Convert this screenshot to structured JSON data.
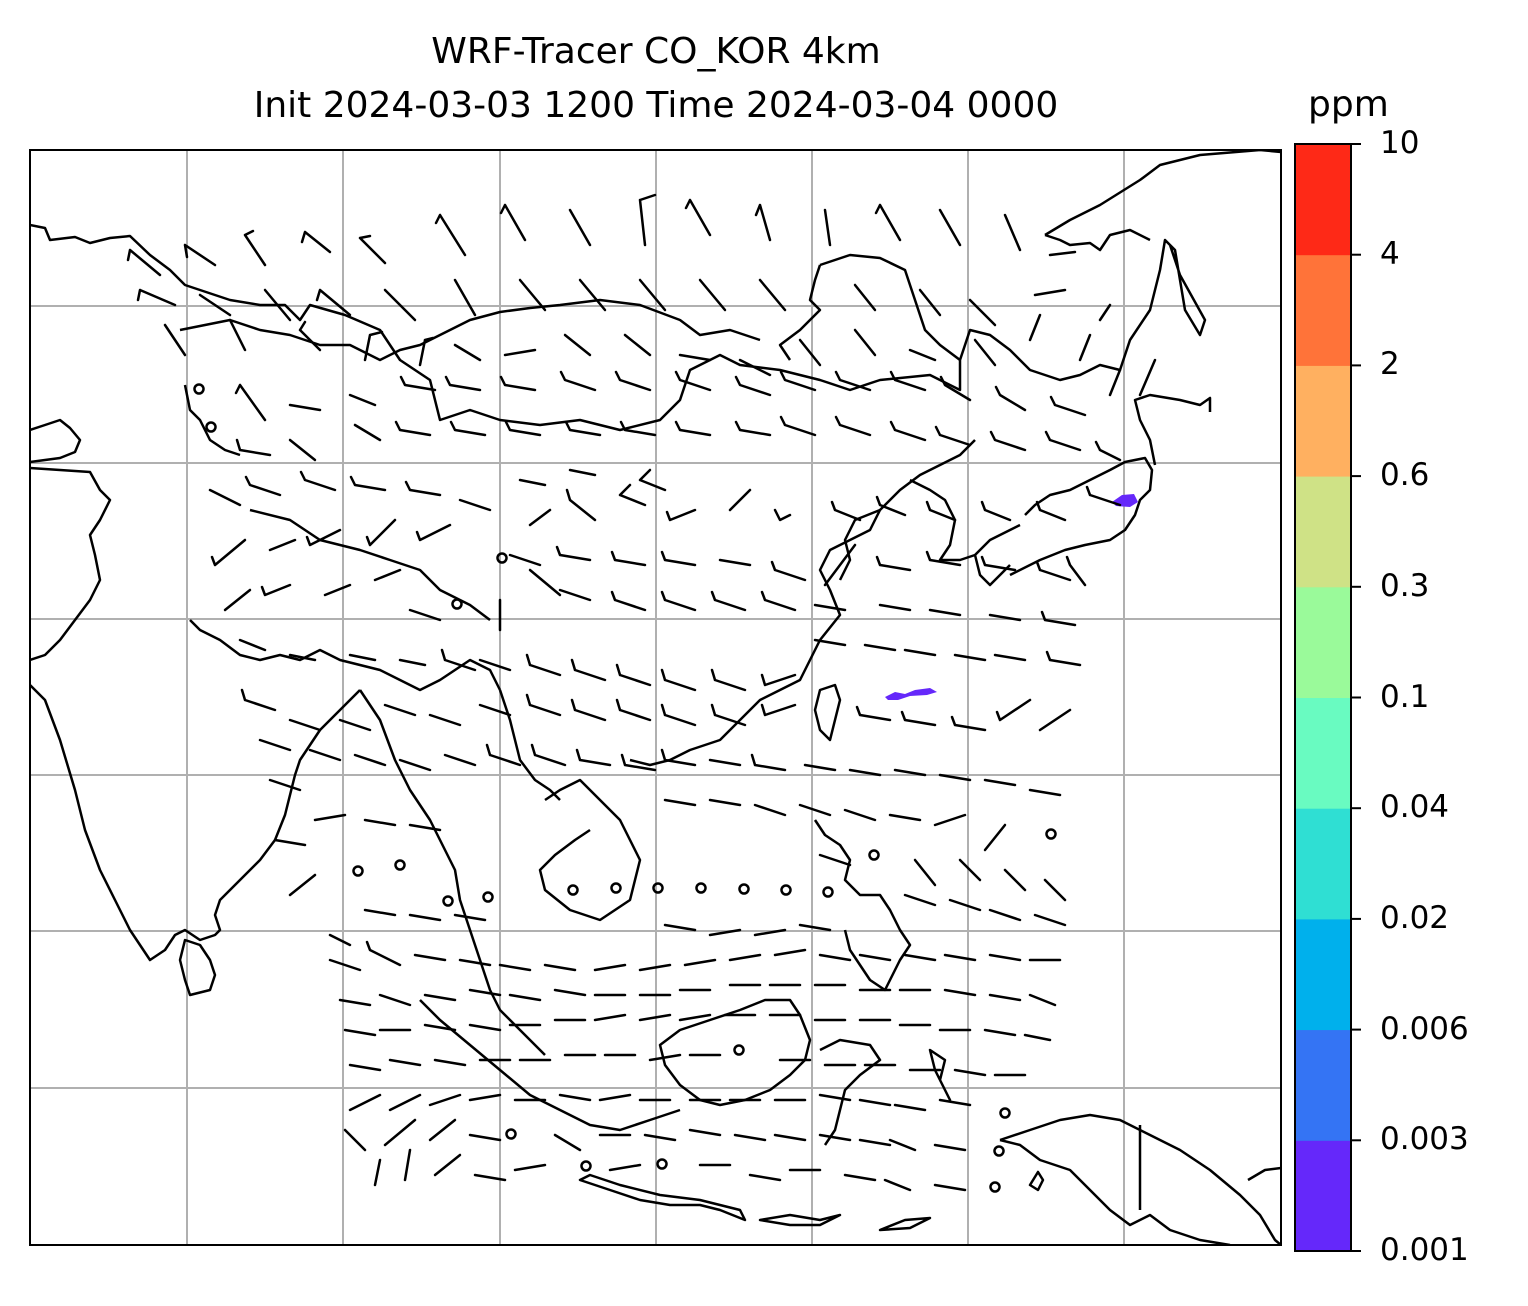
{
  "title": {
    "line1": "WRF-Tracer CO_KOR 4km",
    "line2": "Init 2024-03-03 1200 Time 2024-03-04 0000"
  },
  "colorbar": {
    "unit": "ppm",
    "levels": [
      "0.001",
      "0.003",
      "0.006",
      "0.02",
      "0.04",
      "0.1",
      "0.3",
      "0.6",
      "2",
      "4",
      "10"
    ],
    "colors": [
      "#6528fa",
      "#3474f4",
      "#00b0ec",
      "#2fdfd3",
      "#69fbc1",
      "#9afa9a",
      "#cfe286",
      "#ffb060",
      "#ff7339",
      "#fe2917"
    ]
  },
  "map": {
    "tracer_patches": [
      {
        "region": "near Tokyo",
        "level": "0.001"
      },
      {
        "region": "south of Japan / Ryukyu",
        "level": "0.001"
      }
    ]
  }
}
